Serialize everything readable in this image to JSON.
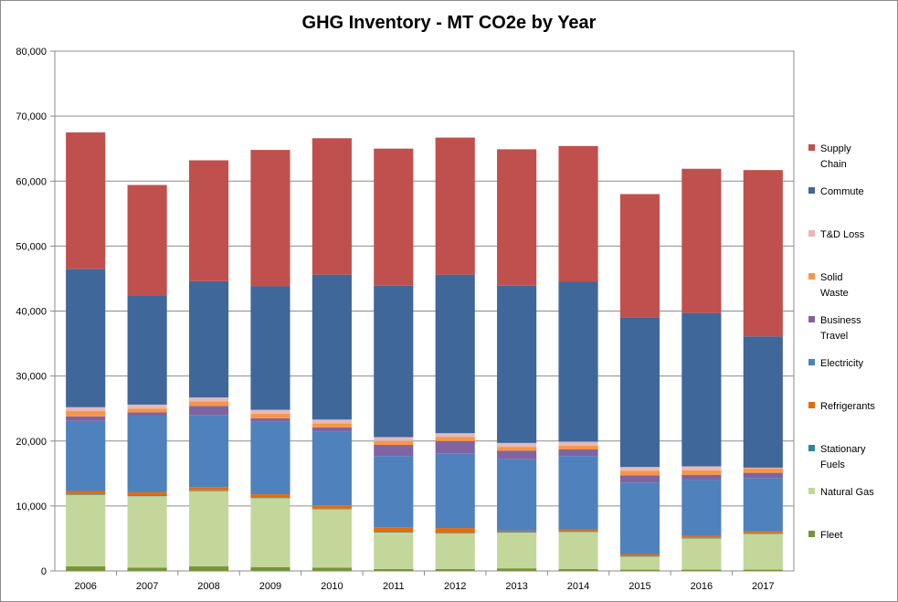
{
  "chart_data": {
    "type": "bar",
    "stacked": true,
    "title": "GHG Inventory - MT CO2e by Year",
    "xlabel": "",
    "ylabel": "",
    "ylim": [
      0,
      80000
    ],
    "yticks": [
      "0",
      "10,000",
      "20,000",
      "30,000",
      "40,000",
      "50,000",
      "60,000",
      "70,000",
      "80,000"
    ],
    "grid": true,
    "legend_position": "right",
    "categories": [
      "2006",
      "2007",
      "2008",
      "2009",
      "2010",
      "2011",
      "2012",
      "2013",
      "2014",
      "2015",
      "2016",
      "2017"
    ],
    "series": [
      {
        "name": "Fleet",
        "color": "#77933c",
        "values": [
          700,
          500,
          700,
          600,
          500,
          300,
          300,
          400,
          300,
          200,
          200,
          200
        ]
      },
      {
        "name": "Natural Gas",
        "color": "#c4d79b",
        "values": [
          11000,
          11000,
          11600,
          10600,
          9000,
          5600,
          5500,
          5500,
          5700,
          2000,
          4800,
          5500
        ]
      },
      {
        "name": "Stationary Fuels",
        "color": "#31859c",
        "values": [
          100,
          100,
          100,
          100,
          100,
          100,
          100,
          100,
          100,
          100,
          100,
          100
        ]
      },
      {
        "name": "Refrigerants",
        "color": "#e46c0a",
        "values": [
          500,
          500,
          500,
          500,
          500,
          700,
          700,
          200,
          300,
          300,
          300,
          300
        ]
      },
      {
        "name": "Electricity",
        "color": "#4f81bd",
        "values": [
          10800,
          11800,
          11100,
          11200,
          11300,
          11000,
          11500,
          11000,
          11300,
          11000,
          8600,
          8200
        ]
      },
      {
        "name": "Business Travel",
        "color": "#8064a2",
        "values": [
          700,
          500,
          1400,
          500,
          700,
          1700,
          1900,
          1300,
          1000,
          1100,
          800,
          800
        ]
      },
      {
        "name": "Solid Waste",
        "color": "#f79646",
        "values": [
          800,
          600,
          700,
          700,
          600,
          600,
          600,
          600,
          600,
          700,
          700,
          700
        ]
      },
      {
        "name": "T&D Loss",
        "color": "#e6b9b8",
        "values": [
          600,
          600,
          600,
          600,
          600,
          600,
          600,
          600,
          600,
          600,
          600,
          100
        ]
      },
      {
        "name": "Commute",
        "color": "#3f679a",
        "values": [
          21300,
          16800,
          17900,
          19000,
          22300,
          23300,
          24400,
          24200,
          24600,
          23000,
          23600,
          20200
        ]
      },
      {
        "name": "Supply Chain",
        "color": "#c0504d",
        "values": [
          21000,
          17000,
          18600,
          21000,
          21000,
          21100,
          21100,
          21000,
          20900,
          19000,
          22200,
          25600
        ]
      }
    ],
    "legend_order": [
      "Supply Chain",
      "Commute",
      "T&D Loss",
      "Solid Waste",
      "Business Travel",
      "Electricity",
      "Refrigerants",
      "Stationary Fuels",
      "Natural Gas",
      "Fleet"
    ],
    "legend_lines": {
      "Supply Chain": [
        "Supply",
        "Chain"
      ],
      "Commute": [
        "Commute"
      ],
      "T&D Loss": [
        "T&D Loss"
      ],
      "Solid Waste": [
        "Solid",
        "Waste"
      ],
      "Business Travel": [
        "Business",
        "Travel"
      ],
      "Electricity": [
        "Electricity"
      ],
      "Refrigerants": [
        "Refrigerants"
      ],
      "Stationary Fuels": [
        "Stationary",
        "Fuels"
      ],
      "Natural Gas": [
        "Natural Gas"
      ],
      "Fleet": [
        "Fleet"
      ]
    }
  }
}
